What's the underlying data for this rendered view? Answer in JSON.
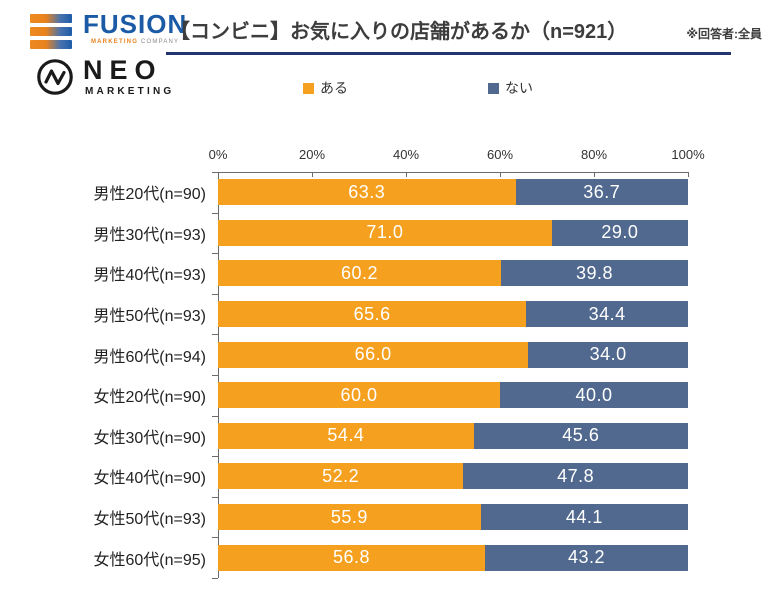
{
  "header": {
    "fusion_logo": {
      "name": "FUSION",
      "tagline_word1": "MARKETING",
      "tagline_word2": "COMPANY"
    },
    "neo_logo": {
      "name": "NEO",
      "subtitle": "MARKETING"
    },
    "title": "【コンビニ】お気に入りの店舗があるか（n=921）",
    "note": "※回答者:全員"
  },
  "colors": {
    "series_aru": "#F5A01E",
    "series_nai": "#51698F",
    "title_underline": "#243470",
    "fusion_blue": "#1B5AA5",
    "fusion_orange": "#E8821E",
    "axis": "#6b6b6b"
  },
  "chart_data": {
    "type": "bar",
    "orientation": "horizontal",
    "stacked": true,
    "title": "【コンビニ】お気に入りの店舗があるか（n=921）",
    "note": "※回答者:全員",
    "categories": [
      "男性20代(n=90)",
      "男性30代(n=93)",
      "男性40代(n=93)",
      "男性50代(n=93)",
      "男性60代(n=94)",
      "女性20代(n=90)",
      "女性30代(n=90)",
      "女性40代(n=90)",
      "女性50代(n=93)",
      "女性60代(n=95)"
    ],
    "series": [
      {
        "name": "ある",
        "color": "#F5A01E",
        "values": [
          63.3,
          71.0,
          60.2,
          65.6,
          66.0,
          60.0,
          54.4,
          52.2,
          55.9,
          56.8
        ]
      },
      {
        "name": "ない",
        "color": "#51698F",
        "values": [
          36.7,
          29.0,
          39.8,
          34.4,
          34.0,
          40.0,
          45.6,
          47.8,
          44.1,
          43.2
        ]
      }
    ],
    "xlim": [
      0,
      100
    ],
    "x_ticks": [
      "0%",
      "20%",
      "40%",
      "60%",
      "80%",
      "100%"
    ],
    "legend_position": "top",
    "value_labels": true,
    "value_format": "one_decimal"
  }
}
